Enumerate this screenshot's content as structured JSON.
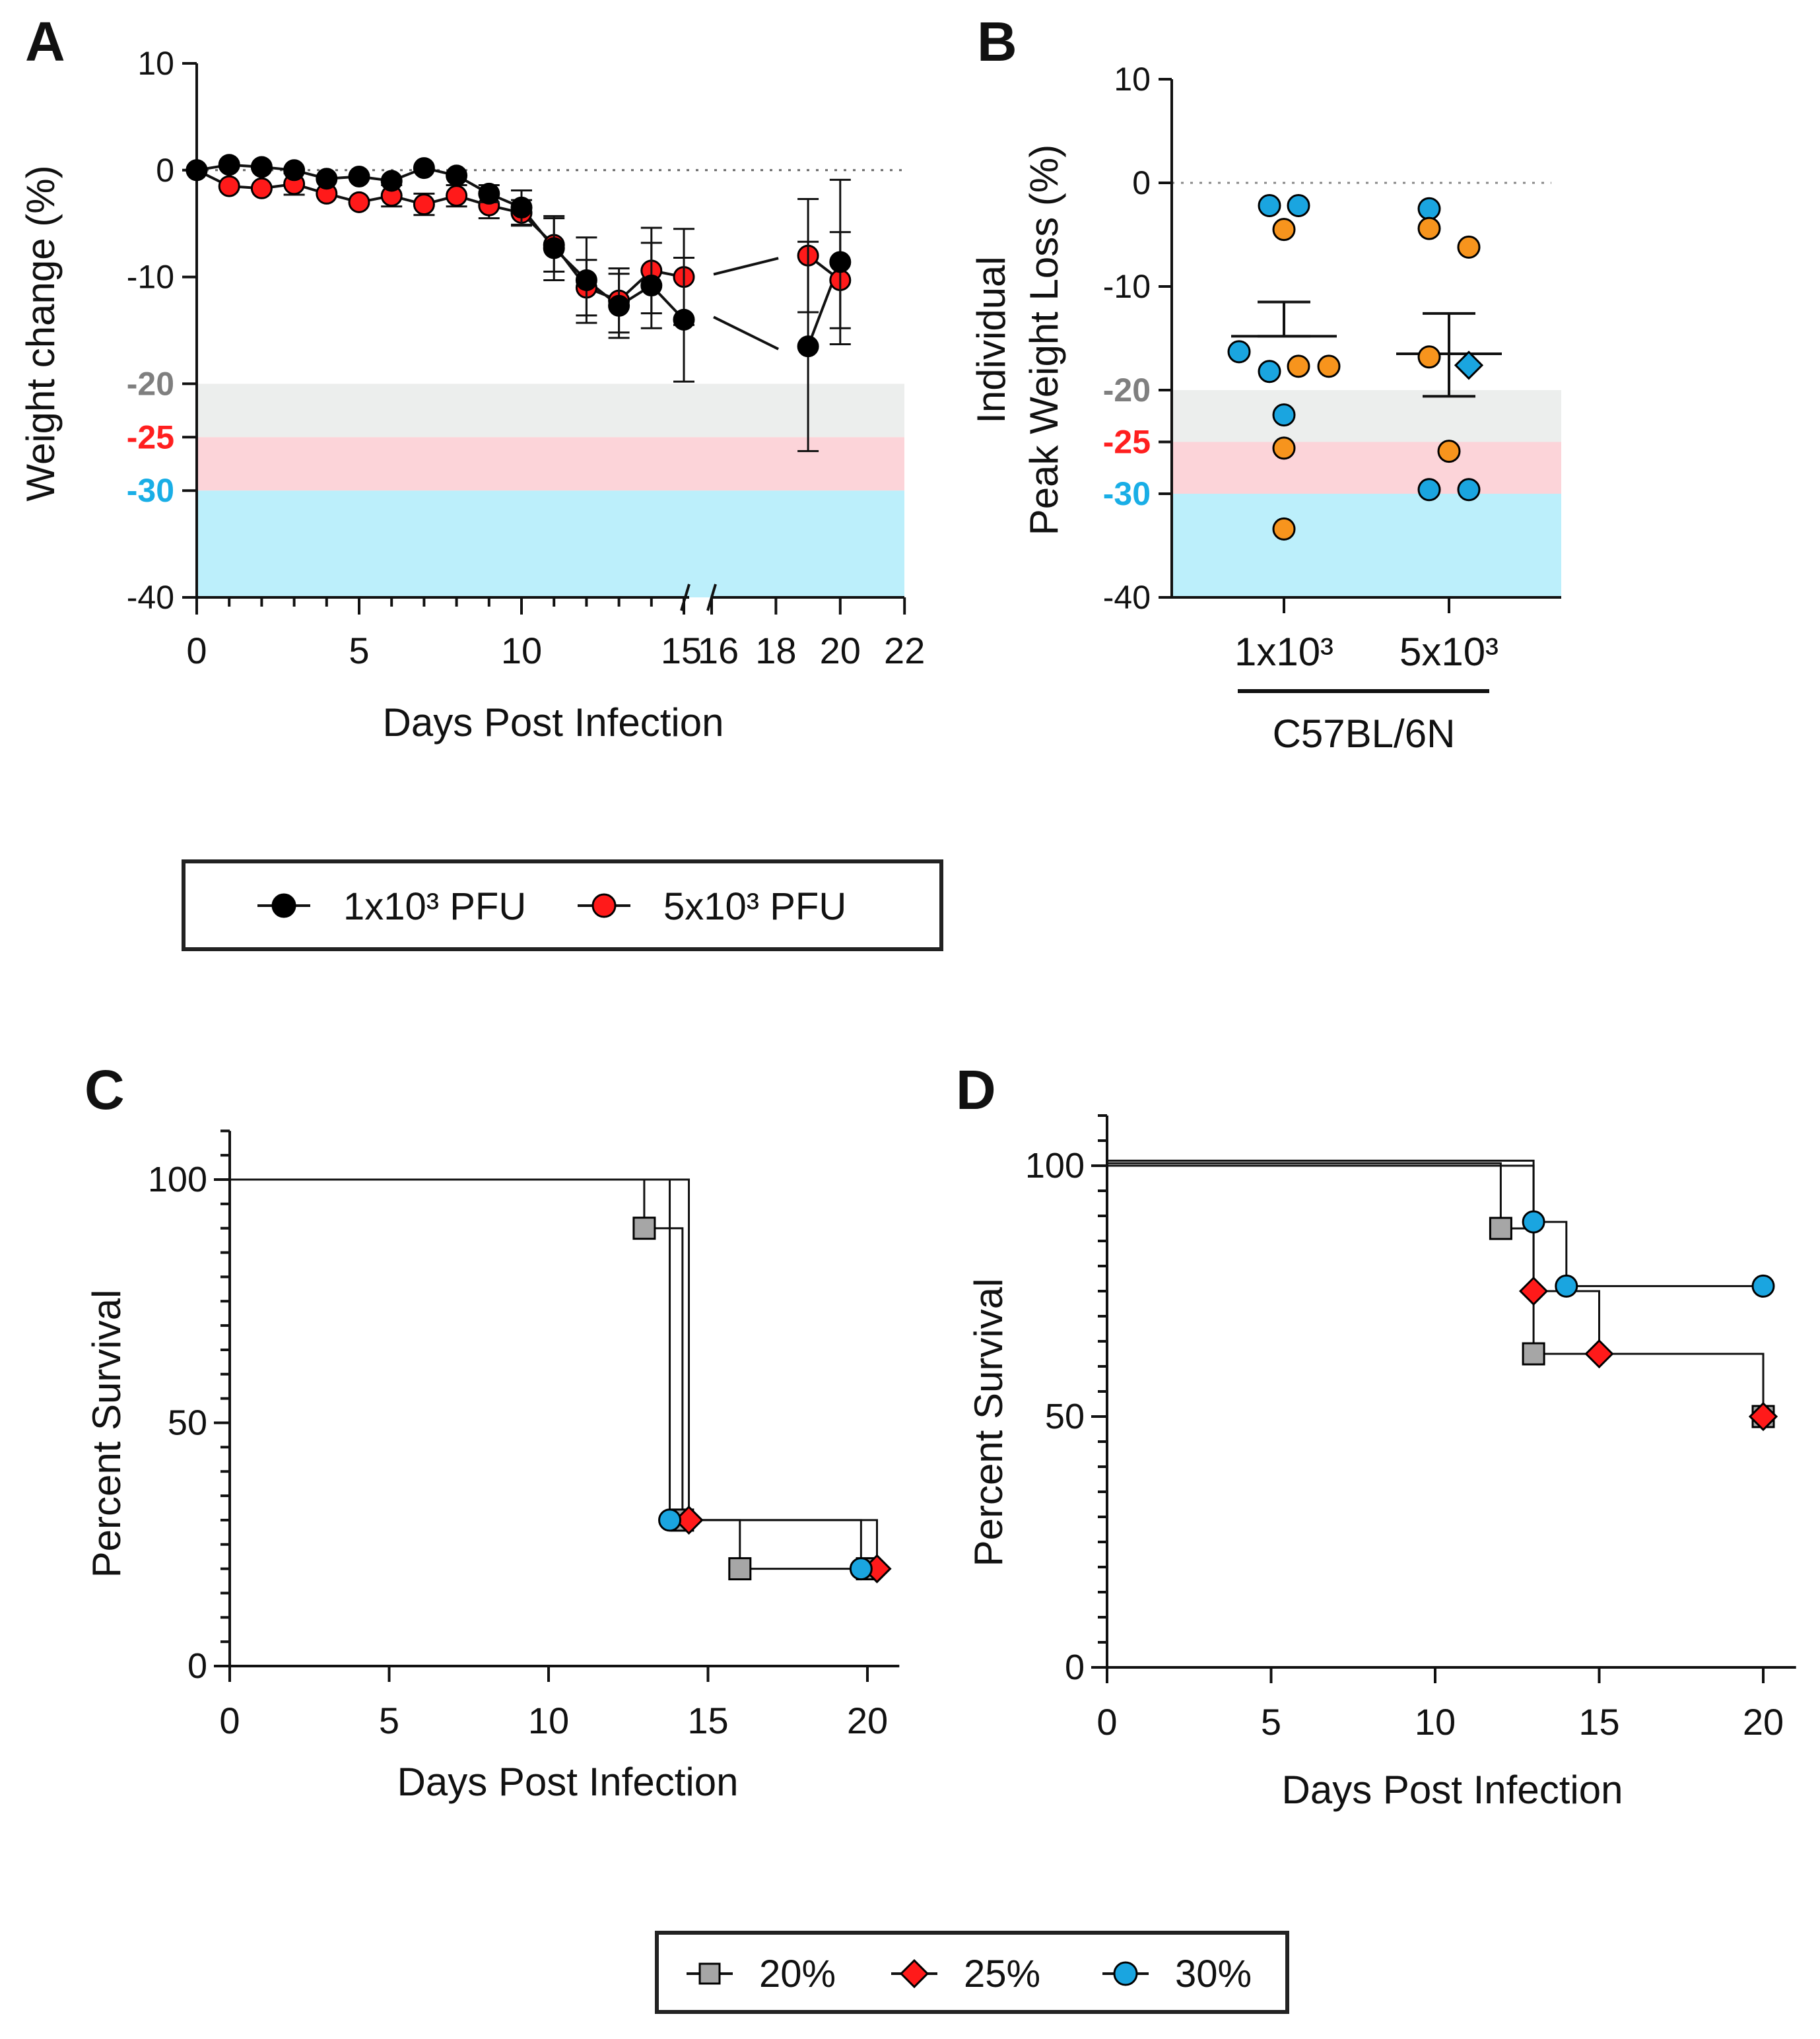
{
  "chart_data": [
    {
      "panel": "A",
      "type": "line",
      "xlabel": "Days Post Infection",
      "ylabel": "Weight change (%)",
      "x_ticks": [
        "0",
        "5",
        "10",
        "15",
        "16",
        "18",
        "20",
        "22"
      ],
      "y_ticks": [
        "10",
        "0",
        "-10",
        "-20",
        "-25",
        "-30",
        "-40"
      ],
      "ylim": [
        -40,
        10
      ],
      "threshold_bands": [
        {
          "label": "-20",
          "from": -25,
          "to": -20,
          "color": "#eceeed",
          "label_color": "#7f7f7f"
        },
        {
          "label": "-25",
          "from": -30,
          "to": -25,
          "color": "#fcd4d9",
          "label_color": "#ff1f1f"
        },
        {
          "label": "-30",
          "from": -40,
          "to": -30,
          "color": "#bceffb",
          "label_color": "#19aee6"
        }
      ],
      "series": [
        {
          "name": "1x10³ PFU",
          "color": "#000000",
          "x": [
            0,
            1,
            2,
            3,
            4,
            5,
            6,
            7,
            8,
            9,
            10,
            11,
            12,
            13,
            14,
            15,
            19,
            20
          ],
          "y": [
            0,
            0.5,
            0.3,
            0,
            -0.8,
            -0.6,
            -1,
            0.2,
            -0.5,
            -2.2,
            -3.5,
            -7.3,
            -10.3,
            -12.7,
            -10.8,
            -14,
            -16.5,
            -8.6
          ],
          "err": [
            0,
            0,
            0,
            0,
            0,
            0,
            0,
            0,
            0,
            0.8,
            1.6,
            3,
            4,
            3,
            4,
            5.8,
            9.8,
            7.7
          ]
        },
        {
          "name": "5x10³ PFU",
          "color": "#ff1a1a",
          "x": [
            0,
            1,
            2,
            3,
            4,
            5,
            6,
            7,
            8,
            9,
            10,
            11,
            12,
            13,
            14,
            15,
            19,
            20
          ],
          "y": [
            0,
            -1.5,
            -1.7,
            -1.3,
            -2.2,
            -3,
            -2.4,
            -3.2,
            -2.4,
            -3.3,
            -4,
            -7,
            -11,
            -12.2,
            -9.4,
            -10,
            -8,
            -10.3
          ],
          "err": [
            0,
            0,
            0,
            1,
            0,
            0,
            1,
            1,
            1,
            1.2,
            1.2,
            2.5,
            2.6,
            3,
            4,
            4.5,
            5.3,
            4.5
          ]
        }
      ],
      "legend": [
        "1x10³ PFU",
        "5x10³ PFU"
      ]
    },
    {
      "panel": "B",
      "type": "scatter",
      "ylabel_line1": "Individual",
      "ylabel_line2": "Peak Weight Loss (%)",
      "x_group_label": "C57BL/6N",
      "categories": [
        "1x10³",
        "5x10³"
      ],
      "y_ticks": [
        "10",
        "0",
        "-10",
        "-20",
        "-25",
        "-30",
        "-40"
      ],
      "ylim": [
        -40,
        10
      ],
      "groups": [
        {
          "category": "1x10³",
          "mean": -14.8,
          "err_high": -11.5,
          "err_low": -14.8,
          "points": [
            {
              "y": -2.2,
              "color": "#1aa5e0"
            },
            {
              "y": -2.2,
              "color": "#1aa5e0"
            },
            {
              "y": -4.5,
              "color": "#f7941d"
            },
            {
              "y": -16.3,
              "color": "#1aa5e0"
            },
            {
              "y": -18.2,
              "color": "#1aa5e0"
            },
            {
              "y": -17.7,
              "color": "#f7941d"
            },
            {
              "y": -17.7,
              "color": "#f7941d"
            },
            {
              "y": -22.4,
              "color": "#1aa5e0"
            },
            {
              "y": -25.6,
              "color": "#f7941d"
            },
            {
              "y": -33.4,
              "color": "#f7941d"
            }
          ]
        },
        {
          "category": "5x10³",
          "mean": -16.5,
          "err_high": -12.6,
          "err_low": -20.6,
          "points": [
            {
              "y": -2.5,
              "color": "#1aa5e0"
            },
            {
              "y": -4.4,
              "color": "#f7941d"
            },
            {
              "y": -6.2,
              "color": "#f7941d"
            },
            {
              "y": -16.8,
              "color": "#f7941d"
            },
            {
              "y": -17.6,
              "color": "#1aa5e0",
              "shape": "diamond"
            },
            {
              "y": -25.9,
              "color": "#f7941d"
            },
            {
              "y": -29.6,
              "color": "#1aa5e0"
            },
            {
              "y": -29.6,
              "color": "#1aa5e0"
            }
          ]
        }
      ]
    },
    {
      "panel": "C",
      "type": "line",
      "subtype": "survival-step",
      "xlabel": "Days Post Infection",
      "ylabel": "Percent Survival",
      "x_ticks": [
        "0",
        "5",
        "10",
        "15",
        "20"
      ],
      "y_ticks": [
        "0",
        "50",
        "100"
      ],
      "xlim": [
        0,
        21
      ],
      "ylim": [
        0,
        110
      ],
      "series": [
        {
          "name": "20%",
          "steps": [
            [
              0,
              100
            ],
            [
              13,
              90
            ],
            [
              14.2,
              30
            ],
            [
              16,
              20
            ],
            [
              20,
              20
            ]
          ]
        },
        {
          "name": "25%",
          "steps": [
            [
              0,
              100
            ],
            [
              14.4,
              30
            ],
            [
              20.3,
              20
            ]
          ]
        },
        {
          "name": "30%",
          "steps": [
            [
              0,
              100
            ],
            [
              13.8,
              30
            ],
            [
              19.8,
              20
            ]
          ]
        }
      ]
    },
    {
      "panel": "D",
      "type": "line",
      "subtype": "survival-step",
      "xlabel": "Days Post Infection",
      "ylabel": "Percent Survival",
      "x_ticks": [
        "0",
        "5",
        "10",
        "15",
        "20"
      ],
      "y_ticks": [
        "0",
        "50",
        "100"
      ],
      "xlim": [
        0,
        21
      ],
      "ylim": [
        0,
        110
      ],
      "series": [
        {
          "name": "20%",
          "steps": [
            [
              0,
              100.5
            ],
            [
              12,
              87.5
            ],
            [
              13,
              62.5
            ],
            [
              20,
              50
            ]
          ]
        },
        {
          "name": "25%",
          "steps": [
            [
              0,
              100
            ],
            [
              13,
              75
            ],
            [
              15,
              62.5
            ],
            [
              20,
              50
            ]
          ]
        },
        {
          "name": "30%",
          "steps": [
            [
              0,
              101
            ],
            [
              13,
              88.8
            ],
            [
              14,
              76
            ],
            [
              20,
              76
            ]
          ]
        }
      ]
    }
  ],
  "legend_bottom": [
    {
      "label": "20%",
      "shape": "square",
      "color": "#a6a6a6"
    },
    {
      "label": "25%",
      "shape": "diamond",
      "color": "#ff1a1a"
    },
    {
      "label": "30%",
      "shape": "circle",
      "color": "#1aa5e0"
    }
  ]
}
